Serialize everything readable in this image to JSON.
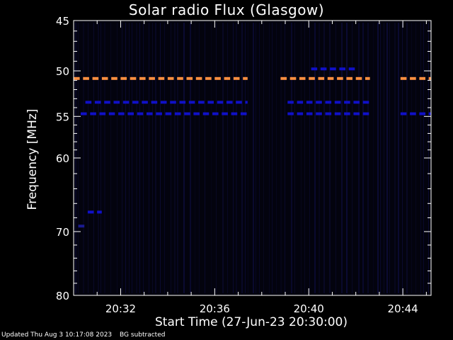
{
  "chart_data": {
    "type": "heatmap",
    "title": "Solar radio Flux (Glasgow)",
    "ylabel": "Frequency [MHz]",
    "xlabel": "Start Time (27-Jun-23 20:30:00)",
    "x_unit": "minutes since 20:30:00",
    "xlim": [
      0,
      15.2
    ],
    "ylim": [
      45,
      80
    ],
    "y_scale": "log",
    "y_tick_labels": [
      "45",
      "50",
      "55",
      "60",
      "70",
      "80"
    ],
    "y_ticks": [
      45,
      50,
      55,
      60,
      70,
      80
    ],
    "x_tick_labels": [
      "20:32",
      "20:36",
      "20:40",
      "20:44"
    ],
    "x_ticks": [
      2,
      6,
      10,
      14
    ],
    "colors": {
      "background": "#000000",
      "low": "#0a0a40",
      "medium": "#1010c8",
      "high": "#ff9040",
      "peak": "#ff4020"
    },
    "emission_lines": [
      {
        "freq_mhz": 50.8,
        "intensity": "high",
        "segments": [
          [
            0,
            7.4
          ],
          [
            8.8,
            12.6
          ],
          [
            13.9,
            15.2
          ]
        ]
      },
      {
        "freq_mhz": 53.4,
        "intensity": "medium",
        "segments": [
          [
            0.5,
            7.4
          ],
          [
            9.1,
            12.7
          ]
        ]
      },
      {
        "freq_mhz": 54.7,
        "intensity": "medium",
        "segments": [
          [
            0.3,
            7.4
          ],
          [
            9.1,
            12.7
          ],
          [
            13.9,
            15.2
          ]
        ]
      },
      {
        "freq_mhz": 49.8,
        "intensity": "medium",
        "segments": [
          [
            10.1,
            12.0
          ]
        ]
      },
      {
        "freq_mhz": 67.2,
        "intensity": "medium",
        "segments": [
          [
            0.6,
            1.2
          ]
        ]
      },
      {
        "freq_mhz": 69.2,
        "intensity": "low",
        "segments": [
          [
            0.2,
            0.6
          ]
        ]
      }
    ]
  },
  "footer": {
    "updated": "Updated Thu Aug  3 10:17:08 2023",
    "note": "BG subtracted"
  }
}
